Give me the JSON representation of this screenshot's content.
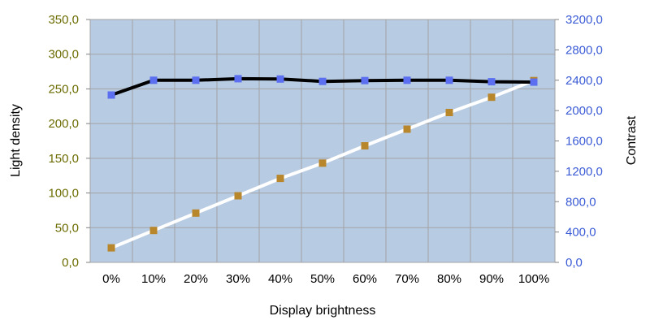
{
  "chart_data": {
    "type": "line",
    "xlabel": "Display brightness",
    "ylabel_left": "Light density",
    "ylabel_right": "Contrast",
    "categories": [
      "0%",
      "10%",
      "20%",
      "30%",
      "40%",
      "50%",
      "60%",
      "70%",
      "80%",
      "90%",
      "100%"
    ],
    "y_left": {
      "lim": [
        0,
        350
      ],
      "ticks": [
        0,
        50,
        100,
        150,
        200,
        250,
        300,
        350
      ],
      "tick_labels": [
        "0,0",
        "50,0",
        "100,0",
        "150,0",
        "200,0",
        "250,0",
        "300,0",
        "350,0"
      ]
    },
    "y_right": {
      "lim": [
        0,
        3200
      ],
      "ticks": [
        0,
        400,
        800,
        1200,
        1600,
        2000,
        2400,
        2800,
        3200
      ],
      "tick_labels": [
        "0,0",
        "400,0",
        "800,0",
        "1200,0",
        "1600,0",
        "2000,0",
        "2400,0",
        "2800,0",
        "3200,0"
      ]
    },
    "series": [
      {
        "axis": "left",
        "line_color": "#ffffff",
        "marker_color": "#b8862b",
        "values": [
          21,
          46,
          71,
          96,
          121,
          143,
          168,
          192,
          216,
          238,
          262
        ]
      },
      {
        "axis": "right",
        "line_color": "#000000",
        "marker_color": "#5b6ff0",
        "values": [
          2205,
          2400,
          2400,
          2420,
          2415,
          2385,
          2395,
          2400,
          2400,
          2380,
          2375
        ]
      }
    ],
    "plot_background": "#b7cbe3",
    "grid": true,
    "grid_color": "#a3a3a3",
    "left_tick_color": "#6b6b00",
    "right_tick_color": "#3b5bd6"
  }
}
